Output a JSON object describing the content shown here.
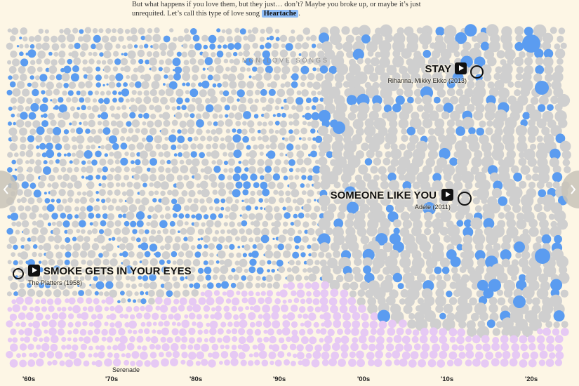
{
  "intro": {
    "line1": "But what happens if you love them, but they just… don’t? Maybe you broke up, or maybe it’s just",
    "line2": "unrequited. Let’s call this type of love song",
    "highlight": "Heartache",
    "end": "."
  },
  "region_label": "NON-LOVE SONGS",
  "annotations": [
    {
      "title": "STAY",
      "artist": "Rihanna, Mikky Ekko (2013)"
    },
    {
      "title": "SOMEONE LIKE YOU",
      "artist": "Adele (2011)"
    },
    {
      "title": "SMOKE GETS IN YOUR EYES",
      "artist": "The Platters (1958)"
    }
  ],
  "serenade": "Serenade",
  "decades": [
    "'60s",
    "'70s",
    "'80s",
    "'90s",
    "'00s",
    "'10s",
    "'20s"
  ]
}
